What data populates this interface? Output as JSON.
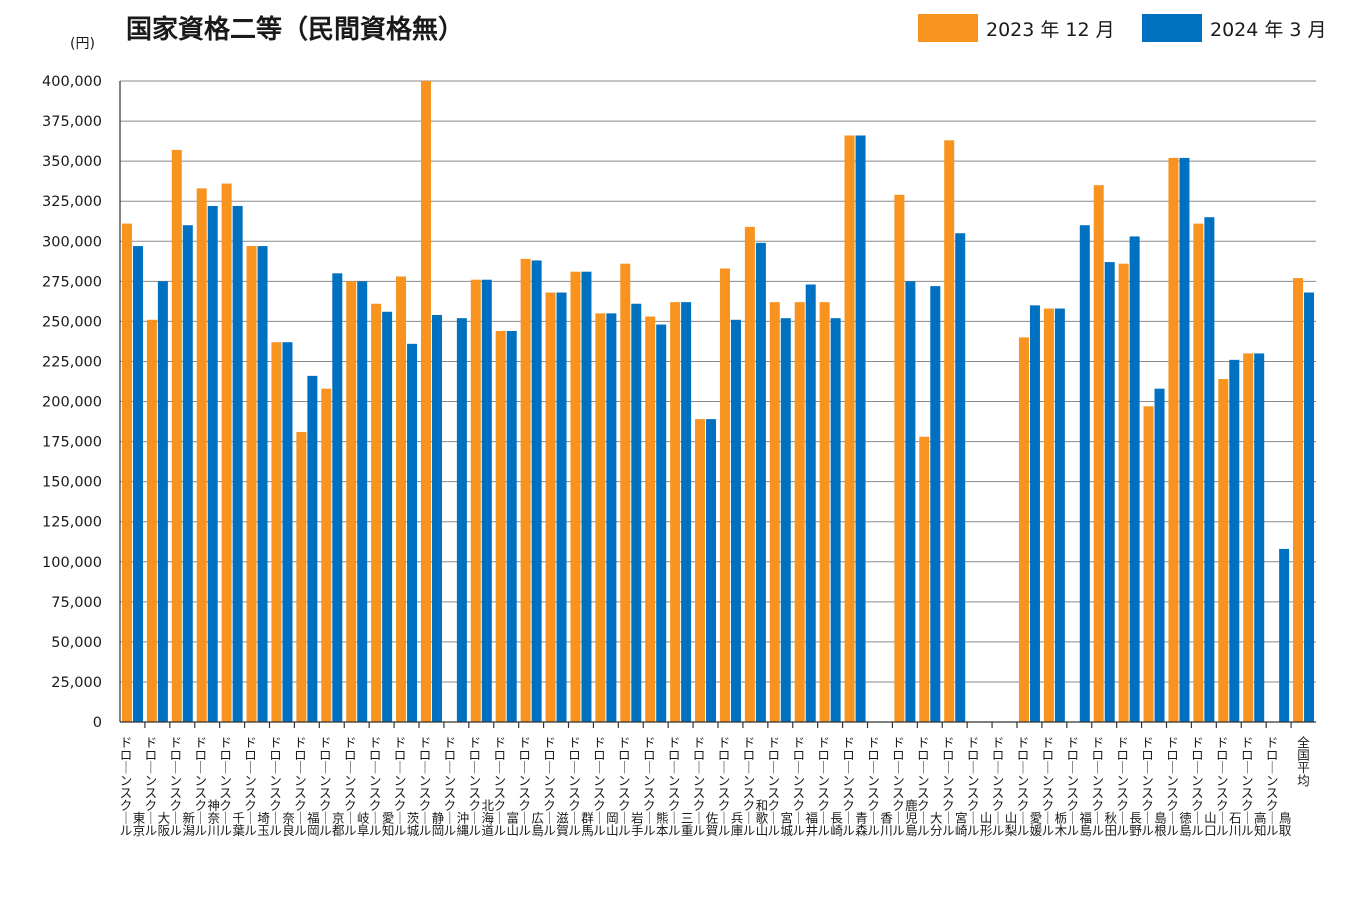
{
  "chart_data": {
    "type": "bar",
    "title": "国家資格二等（民間資格無）",
    "ylabel": "(円)",
    "ylim": [
      0,
      400000
    ],
    "yticks": [
      "0",
      "25,000",
      "50,000",
      "75,000",
      "100,000",
      "125,000",
      "150,000",
      "175,000",
      "200,000",
      "225,000",
      "250,000",
      "275,000",
      "300,000",
      "325,000",
      "350,000",
      "375,000",
      "400,000"
    ],
    "categories": [
      "ドローンスクール東京",
      "ドローンスクール大阪",
      "ドローンスクール新潟",
      "ドローンスクール神奈川",
      "ドローンスクール千葉",
      "ドローンスクール埼玉",
      "ドローンスクール奈良",
      "ドローンスクール福岡",
      "ドローンスクール京都",
      "ドローンスクール岐阜",
      "ドローンスクール愛知",
      "ドローンスクール茨城",
      "ドローンスクール静岡",
      "ドローンスクール沖縄",
      "ドローンスクール北海道",
      "ドローンスクール富山",
      "ドローンスクール広島",
      "ドローンスクール滋賀",
      "ドローンスクール群馬",
      "ドローンスクール岡山",
      "ドローンスクール岩手",
      "ドローンスクール熊本",
      "ドローンスクール三重",
      "ドローンスクール佐賀",
      "ドローンスクール兵庫",
      "ドローンスクール和歌山",
      "ドローンスクール宮城",
      "ドローンスクール福井",
      "ドローンスクール長崎",
      "ドローンスクール青森",
      "ドローンスクール香川",
      "ドローンスクール鹿児島",
      "ドローンスクール大分",
      "ドローンスクール宮崎",
      "ドローンスクール山形",
      "ドローンスクール山梨",
      "ドローンスクール愛媛",
      "ドローンスクール栃木",
      "ドローンスクール福島",
      "ドローンスクール秋田",
      "ドローンスクール長野",
      "ドローンスクール島根",
      "ドローンスクール徳島",
      "ドローンスクール山口",
      "ドローンスクール石川",
      "ドローンスクール高知",
      "ドローンスクール鳥取",
      "全国平均"
    ],
    "series": [
      {
        "name": "2023 年 12 月",
        "color": "#F7931E",
        "values": [
          311000,
          251000,
          357000,
          333000,
          336000,
          297000,
          237000,
          181000,
          208000,
          275000,
          261000,
          278000,
          400000,
          null,
          276000,
          244000,
          289000,
          268000,
          281000,
          255000,
          286000,
          253000,
          262000,
          189000,
          283000,
          309000,
          262000,
          262000,
          262000,
          366000,
          null,
          329000,
          178000,
          363000,
          null,
          null,
          240000,
          258000,
          null,
          335000,
          286000,
          197000,
          352000,
          311000,
          214000,
          230000,
          null,
          277000
        ]
      },
      {
        "name": "2024 年 3 月",
        "color": "#0070C0",
        "values": [
          297000,
          275000,
          310000,
          322000,
          322000,
          297000,
          237000,
          216000,
          280000,
          275000,
          256000,
          236000,
          254000,
          252000,
          276000,
          244000,
          288000,
          268000,
          281000,
          255000,
          261000,
          248000,
          262000,
          189000,
          251000,
          299000,
          252000,
          273000,
          252000,
          366000,
          null,
          275000,
          272000,
          305000,
          null,
          null,
          260000,
          258000,
          310000,
          287000,
          303000,
          208000,
          352000,
          315000,
          226000,
          230000,
          108000,
          268000
        ]
      }
    ],
    "legend_position": "top-right",
    "grid": true
  }
}
